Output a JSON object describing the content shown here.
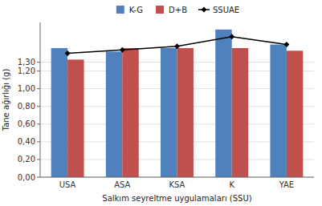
{
  "chart_data": {
    "type": "bar",
    "xlabel": "Salkım seyreltme uygulamaları (SSU)",
    "ylabel": "Tane ağırlığı (g)",
    "categories": [
      "USA",
      "ASA",
      "KSA",
      "K",
      "YAE"
    ],
    "series": [
      {
        "name": "K-G",
        "color": "#4F81BD",
        "values": [
          1.46,
          1.42,
          1.46,
          1.67,
          1.5
        ]
      },
      {
        "name": "D+B",
        "color": "#C0504D",
        "values": [
          1.33,
          1.46,
          1.46,
          1.46,
          1.43
        ]
      },
      {
        "name": "SSUAE",
        "type": "line",
        "color": "#000000",
        "marker": "diamond",
        "values": [
          1.4,
          1.44,
          1.48,
          1.59,
          1.5
        ]
      }
    ],
    "ylim": [
      0,
      1.75
    ],
    "yticks": [
      {
        "value": 0.0,
        "label": "0,00"
      },
      {
        "value": 0.2,
        "label": "0,20"
      },
      {
        "value": 0.4,
        "label": "0,40"
      },
      {
        "value": 0.6,
        "label": "0,60"
      },
      {
        "value": 0.8,
        "label": "0,80"
      },
      {
        "value": 1.0,
        "label": "1,00"
      },
      {
        "value": 1.2,
        "label": "1,20"
      },
      {
        "value": 1.3,
        "label": "1,30"
      }
    ],
    "grid": true,
    "legend": "top"
  }
}
